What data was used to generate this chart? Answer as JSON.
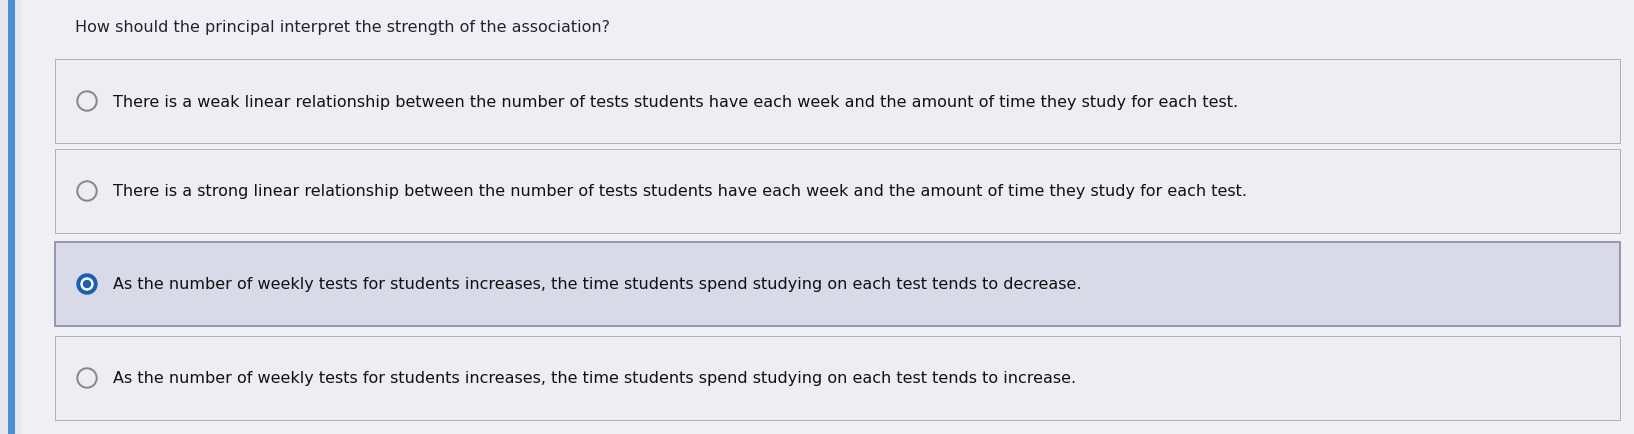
{
  "question": "How should the principal interpret the strength of the association?",
  "options": [
    "There is a weak linear relationship between the number of tests students have each week and the amount of time they study for each test.",
    "There is a strong linear relationship between the number of tests students have each week and the amount of time they study for each test.",
    "As the number of weekly tests for students increases, the time students spend studying on each test tends to decrease.",
    "As the number of weekly tests for students increases, the time students spend studying on each test tends to increase."
  ],
  "selected_index": 2,
  "bg_color": "#e8e8ec",
  "panel_bg": "#f0f0f4",
  "option_bg_normal": "#eeeef2",
  "option_bg_selected": "#d8dae8",
  "option_border_color": "#b0b0b8",
  "option_border_selected": "#8888a8",
  "question_color": "#222233",
  "text_color": "#111111",
  "radio_fill_selected": "#1a5fb4",
  "radio_border_selected": "#1a5fb4",
  "radio_border_unselected": "#888888",
  "radio_fill_unselected": "#eeeef2",
  "left_bar_color": "#4a90d9",
  "question_fontsize": 11.5,
  "option_fontsize": 11.5
}
